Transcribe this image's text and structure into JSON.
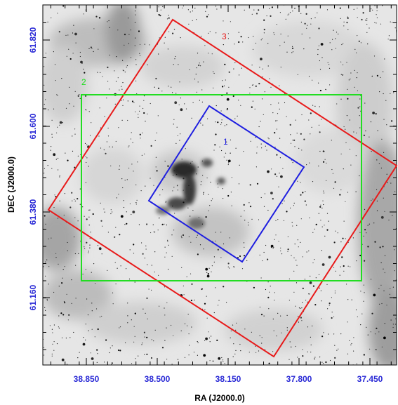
{
  "figure": {
    "x_axis_title": "RA (J2000.0)",
    "y_axis_title": "DEC (J2000.0)",
    "x_ticks": [
      "38.850",
      "38.500",
      "38.150",
      "37.800",
      "37.450"
    ],
    "y_ticks": [
      "61.820",
      "61.600",
      "61.380",
      "61.160"
    ],
    "tick_label_color": "#2a2ad6",
    "axis_title_color": "#000000"
  },
  "footprints": [
    {
      "label": "1",
      "color": "#1f1fe0"
    },
    {
      "label": "2",
      "color": "#22dd22"
    },
    {
      "label": "3",
      "color": "#e81a1a"
    }
  ]
}
